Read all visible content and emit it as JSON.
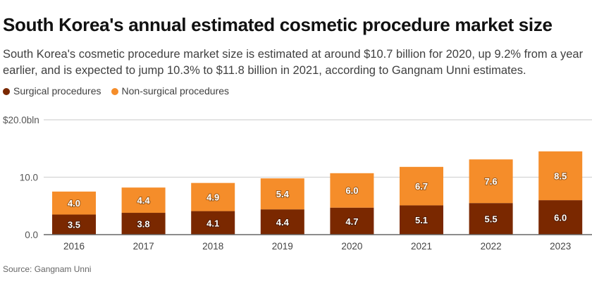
{
  "title": "South Korea's annual estimated cosmetic procedure market size",
  "subtitle": "South Korea's cosmetic procedure market size is estimated at around $10.7 billion for 2020, up 9.2% from a year earlier, and is expected to jump 10.3% to $11.8 billion in 2021, according to Gangnam Unni estimates.",
  "source": "Source: Gangnam Unni",
  "chart_data": {
    "type": "bar",
    "stacked": true,
    "categories": [
      "2016",
      "2017",
      "2018",
      "2019",
      "2020",
      "2021",
      "2022",
      "2023"
    ],
    "series": [
      {
        "name": "Surgical procedures",
        "color": "#7a2800",
        "values": [
          3.5,
          3.8,
          4.1,
          4.4,
          4.7,
          5.1,
          5.5,
          6.0
        ]
      },
      {
        "name": "Non-surgical procedures",
        "color": "#f58d2a",
        "values": [
          4.0,
          4.4,
          4.9,
          5.4,
          6.0,
          6.7,
          7.6,
          8.5
        ]
      }
    ],
    "yticks": [
      {
        "value": 0,
        "label": "0.0"
      },
      {
        "value": 10,
        "label": "10.0"
      },
      {
        "value": 20,
        "label": "$20.0bln"
      }
    ],
    "ylim": [
      0,
      20
    ],
    "grid": true,
    "legend": "top-left"
  }
}
